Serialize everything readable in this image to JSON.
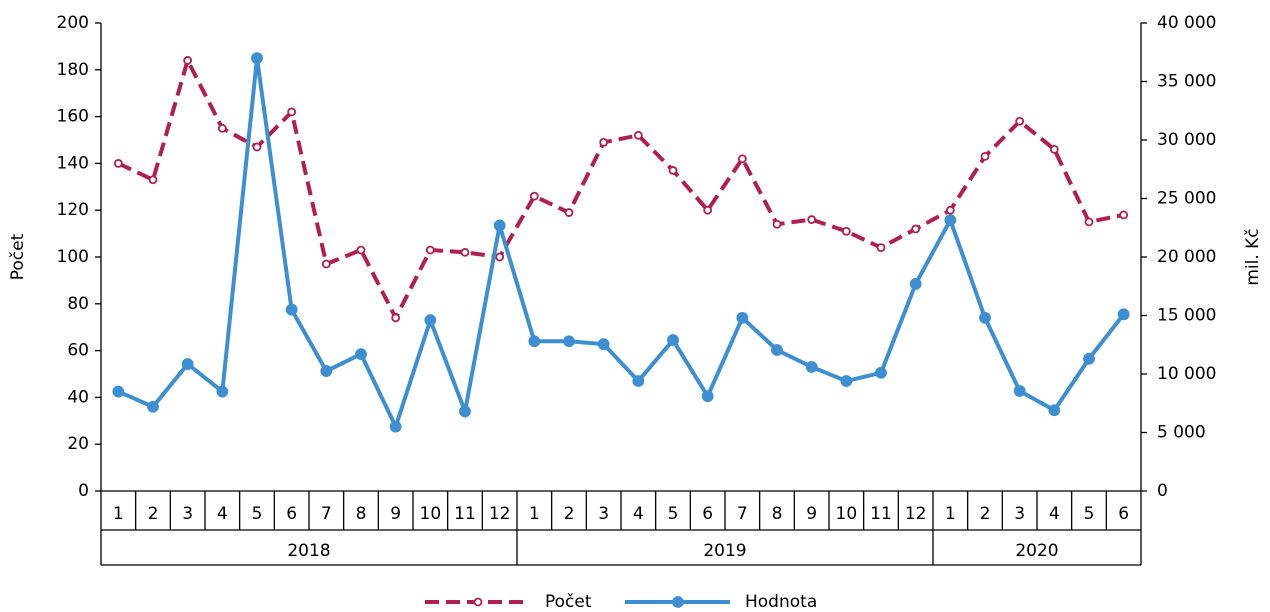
{
  "chart_data": {
    "type": "line",
    "groups": [
      {
        "label": "2018",
        "categories": [
          "1",
          "2",
          "3",
          "4",
          "5",
          "6",
          "7",
          "8",
          "9",
          "10",
          "11",
          "12"
        ]
      },
      {
        "label": "2019",
        "categories": [
          "1",
          "2",
          "3",
          "4",
          "5",
          "6",
          "7",
          "8",
          "9",
          "10",
          "11",
          "12"
        ]
      },
      {
        "label": "2020",
        "categories": [
          "1",
          "2",
          "3",
          "4",
          "5",
          "6"
        ]
      }
    ],
    "ylabel": "Počet",
    "y2label": "mil. Kč",
    "ylim": [
      0,
      200
    ],
    "yticks": [
      0,
      20,
      40,
      60,
      80,
      100,
      120,
      140,
      160,
      180,
      200
    ],
    "y2lim": [
      0,
      40000
    ],
    "y2ticks": [
      0,
      {
        "value": 5000,
        "label": "5 000"
      },
      {
        "value": 10000,
        "label": "10 000"
      },
      {
        "value": 15000,
        "label": "15 000"
      },
      {
        "value": 20000,
        "label": "20 000"
      },
      {
        "value": 25000,
        "label": "25 000"
      },
      {
        "value": 30000,
        "label": "30 000"
      },
      {
        "value": 35000,
        "label": "35 000"
      },
      {
        "value": 40000,
        "label": "40 000"
      }
    ],
    "grid": false,
    "legend": "bottom",
    "series": [
      {
        "name": "Počet",
        "color": "#b01f4f",
        "dashed": true,
        "marker": "open",
        "axis": "y",
        "values": [
          140,
          133,
          184,
          155,
          147,
          162,
          97,
          103,
          74,
          103,
          102,
          100,
          126,
          119,
          149,
          152,
          137,
          120,
          142,
          114,
          116,
          111,
          104,
          112,
          120,
          143,
          158,
          146,
          115,
          118
        ]
      },
      {
        "name": "Hodnota",
        "color": "#3d8fd1",
        "dashed": false,
        "marker": "filled",
        "axis": "y2",
        "values": [
          8500,
          7200,
          10850,
          8500,
          37000,
          15500,
          10250,
          11700,
          5500,
          14600,
          6800,
          22700,
          12800,
          12800,
          12550,
          9400,
          12900,
          8100,
          14800,
          12050,
          10600,
          9400,
          10100,
          17700,
          23150,
          14800,
          8550,
          6900,
          11300,
          15100
        ]
      }
    ]
  }
}
